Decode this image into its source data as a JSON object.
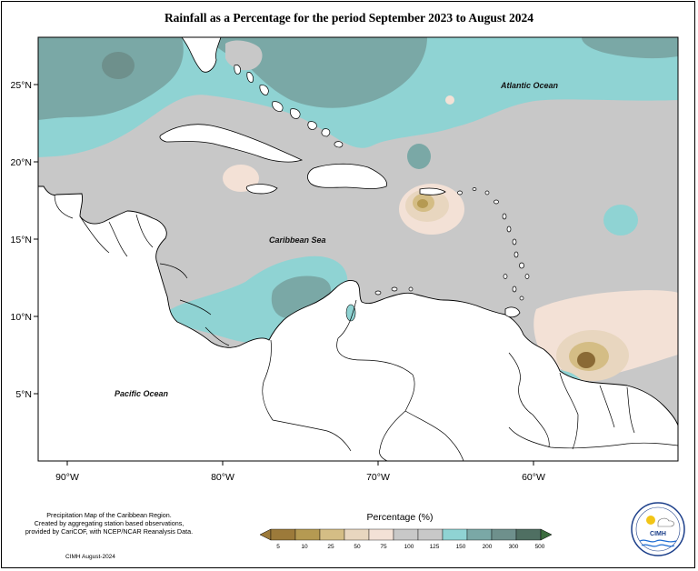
{
  "title": "Rainfall as a Percentage for the period September 2023 to August 2024",
  "map": {
    "lat_labels": [
      "25°N",
      "20°N",
      "15°N",
      "10°N",
      "5°N"
    ],
    "lon_labels": [
      "90°W",
      "80°W",
      "70°W",
      "60°W"
    ],
    "labels": {
      "atlantic": "Atlantic Ocean",
      "caribbean": "Caribbean Sea",
      "pacific": "Pacific Ocean"
    },
    "colors": {
      "p5_10": "#b59a52",
      "p10_25": "#d4bd85",
      "p25_50": "#e8d6bf",
      "p50_75": "#f3e1d6",
      "p75_100": "#c8c8c8",
      "p100_125": "#c8c8c8",
      "p125_150": "#8fd3d3",
      "p150_200": "#7aa8a6",
      "p200_300": "#6e908c",
      "p300_500": "#4f6f62",
      "land": "#ffffff"
    }
  },
  "legend": {
    "title": "Percentage (%)",
    "ticks": [
      "5",
      "10",
      "25",
      "50",
      "75",
      "100",
      "125",
      "150",
      "200",
      "300",
      "500"
    ],
    "colors": [
      "#9c7a3a",
      "#b59a52",
      "#d4bd85",
      "#e8d6bf",
      "#f3e1d6",
      "#c8c8c8",
      "#c8c8c8",
      "#8fd3d3",
      "#7aa8a6",
      "#6e908c",
      "#4f6f62",
      "#3b6b3e"
    ]
  },
  "credits": {
    "line1": "Precipitation Map of the Caribbean Region.",
    "line2": "Created by aggregating station based observations,",
    "line3": "provided by CariCOF, with NCEP/NCAR Reanalysis Data.",
    "line4": "CIMH August-2024"
  },
  "logo": {
    "text": "CIMH"
  }
}
